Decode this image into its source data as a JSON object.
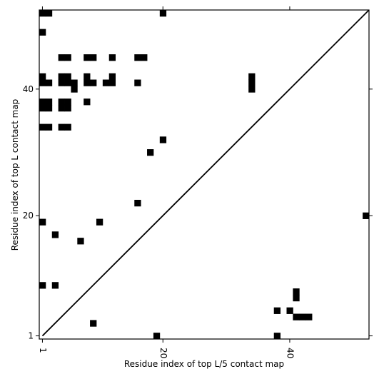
{
  "chart_data": {
    "type": "heatmap",
    "title": "",
    "xlabel": "Residue index of top L/5 contact map",
    "ylabel": "Residue index of top L contact map",
    "xlim": [
      0.5,
      52.5
    ],
    "ylim": [
      0.5,
      52.5
    ],
    "xticks": [
      1,
      20,
      40
    ],
    "yticks": [
      1,
      20,
      40
    ],
    "xtick_labels": [
      "1",
      "20",
      "40"
    ],
    "ytick_labels": [
      "1",
      "20",
      "40"
    ],
    "xtick_rotation": -90,
    "diagonal": true,
    "grid": false,
    "colors": {
      "contact": "#000000",
      "background": "#ffffff",
      "axis": "#000000"
    },
    "upper_triangle_contacts": [
      [
        1,
        52
      ],
      [
        2,
        52
      ],
      [
        1,
        49
      ],
      [
        4,
        45
      ],
      [
        5,
        45
      ],
      [
        8,
        45
      ],
      [
        9,
        45
      ],
      [
        12,
        45
      ],
      [
        16,
        45
      ],
      [
        17,
        45
      ],
      [
        1,
        42
      ],
      [
        4,
        42
      ],
      [
        5,
        42
      ],
      [
        8,
        42
      ],
      [
        12,
        42
      ],
      [
        1,
        41
      ],
      [
        2,
        41
      ],
      [
        4,
        41
      ],
      [
        5,
        41
      ],
      [
        6,
        41
      ],
      [
        8,
        41
      ],
      [
        9,
        41
      ],
      [
        11,
        41
      ],
      [
        12,
        41
      ],
      [
        16,
        41
      ],
      [
        6,
        40
      ],
      [
        34,
        42
      ],
      [
        34,
        41
      ],
      [
        34,
        40
      ],
      [
        1,
        38
      ],
      [
        2,
        38
      ],
      [
        4,
        38
      ],
      [
        5,
        38
      ],
      [
        8,
        38
      ],
      [
        1,
        37
      ],
      [
        2,
        37
      ],
      [
        4,
        37
      ],
      [
        5,
        37
      ],
      [
        1,
        34
      ],
      [
        2,
        34
      ],
      [
        4,
        34
      ],
      [
        5,
        34
      ],
      [
        20,
        32
      ],
      [
        18,
        30
      ],
      [
        16,
        22
      ],
      [
        1,
        19
      ],
      [
        10,
        19
      ],
      [
        3,
        17
      ],
      [
        7,
        16
      ],
      [
        20,
        52
      ]
    ],
    "lower_triangle_contacts": [
      [
        52,
        20
      ],
      [
        1,
        9
      ],
      [
        3,
        9
      ],
      [
        41,
        8
      ],
      [
        41,
        7
      ],
      [
        40,
        5
      ],
      [
        38,
        5
      ],
      [
        41,
        4
      ],
      [
        42,
        4
      ],
      [
        43,
        4
      ],
      [
        9,
        3
      ],
      [
        19,
        1
      ],
      [
        38,
        1
      ]
    ]
  }
}
